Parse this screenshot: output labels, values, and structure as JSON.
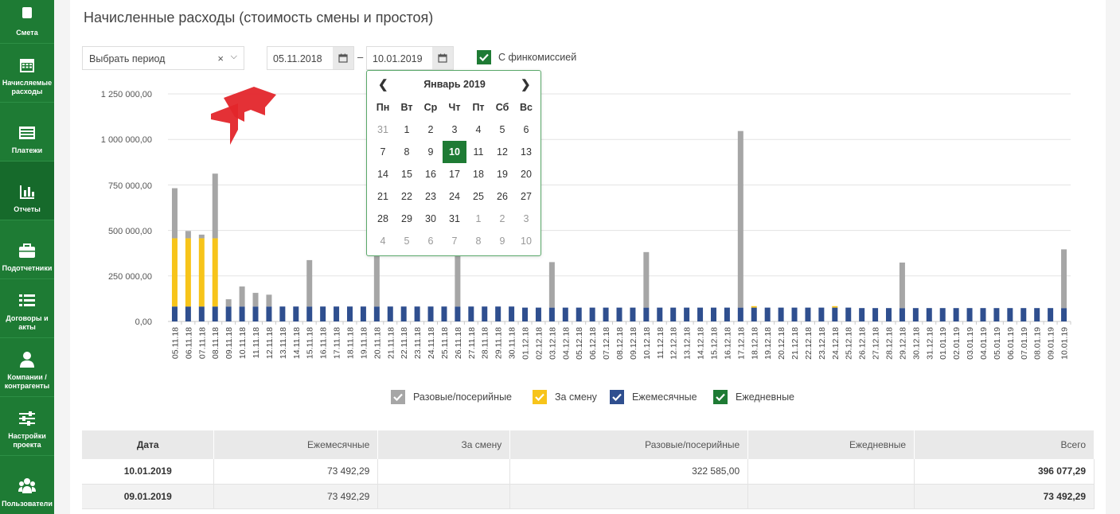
{
  "sidebar": {
    "items": [
      {
        "label": "Смета",
        "icon": "document-icon"
      },
      {
        "label": "Начисляемые расходы",
        "icon": "calendar-icon"
      },
      {
        "label": "Платежи",
        "icon": "list-icon"
      },
      {
        "label": "Отчеты",
        "icon": "bar-chart-icon"
      },
      {
        "label": "Подотчетники",
        "icon": "briefcase-icon"
      },
      {
        "label": "Договоры и акты",
        "icon": "list-lines-icon"
      },
      {
        "label": "Компании / контрагенты",
        "icon": "user-icon"
      },
      {
        "label": "Настройки проекта",
        "icon": "sliders-icon"
      },
      {
        "label": "Пользователи",
        "icon": "users-icon"
      }
    ],
    "active_index": 3
  },
  "header": {
    "title": "Начисленные расходы (стоимость смены и простоя)"
  },
  "filters": {
    "period_placeholder": "Выбрать период",
    "date_from": "05.11.2018",
    "date_separator": "–",
    "date_to": "10.01.2019",
    "fin_commission_label": "С финкомиссией",
    "fin_commission_checked": true
  },
  "calendar": {
    "month_title": "Январь 2019",
    "weekdays": [
      "Пн",
      "Вт",
      "Ср",
      "Чт",
      "Пт",
      "Сб",
      "Вс"
    ],
    "weeks": [
      [
        "31",
        "1",
        "2",
        "3",
        "4",
        "5",
        "6"
      ],
      [
        "7",
        "8",
        "9",
        "10",
        "11",
        "12",
        "13"
      ],
      [
        "14",
        "15",
        "16",
        "17",
        "18",
        "19",
        "20"
      ],
      [
        "21",
        "22",
        "23",
        "24",
        "25",
        "26",
        "27"
      ],
      [
        "28",
        "29",
        "30",
        "31",
        "1",
        "2",
        "3"
      ],
      [
        "4",
        "5",
        "6",
        "7",
        "8",
        "9",
        "10"
      ]
    ],
    "muted": [
      [
        0,
        0
      ],
      [
        4,
        4
      ],
      [
        4,
        5
      ],
      [
        4,
        6
      ],
      [
        5,
        0
      ],
      [
        5,
        1
      ],
      [
        5,
        2
      ],
      [
        5,
        3
      ],
      [
        5,
        4
      ],
      [
        5,
        5
      ],
      [
        5,
        6
      ]
    ],
    "selected": [
      1,
      3
    ]
  },
  "chart_data": {
    "type": "bar",
    "stacked": true,
    "y_ticks": [
      "1 250 000,00",
      "1 000 000,00",
      "750 000,00",
      "500 000,00",
      "250 000,00",
      "0,00"
    ],
    "ylim": [
      0,
      1250000
    ],
    "categories": [
      "05.11.18",
      "06.11.18",
      "07.11.18",
      "08.11.18",
      "09.11.18",
      "10.11.18",
      "11.11.18",
      "12.11.18",
      "13.11.18",
      "14.11.18",
      "15.11.18",
      "16.11.18",
      "17.11.18",
      "18.11.18",
      "19.11.18",
      "20.11.18",
      "21.11.18",
      "22.11.18",
      "23.11.18",
      "24.11.18",
      "25.11.18",
      "26.11.18",
      "27.11.18",
      "28.11.18",
      "29.11.18",
      "30.11.18",
      "01.12.18",
      "02.12.18",
      "03.12.18",
      "04.12.18",
      "05.12.18",
      "06.12.18",
      "07.12.18",
      "08.12.18",
      "09.12.18",
      "10.12.18",
      "11.12.18",
      "12.12.18",
      "13.12.18",
      "14.12.18",
      "15.12.18",
      "16.12.18",
      "17.12.18",
      "18.12.18",
      "19.12.18",
      "20.12.18",
      "21.12.18",
      "22.12.18",
      "23.12.18",
      "24.12.18",
      "25.12.18",
      "26.12.18",
      "27.12.18",
      "28.12.18",
      "29.12.18",
      "30.12.18",
      "31.12.18",
      "01.01.19",
      "02.01.19",
      "03.01.19",
      "04.01.19",
      "05.01.19",
      "06.01.19",
      "07.01.19",
      "08.01.19",
      "09.01.19",
      "10.01.19"
    ],
    "series": [
      {
        "name": "Ежемесячные",
        "color": "#2f4f8f",
        "values": [
          82000,
          82000,
          82000,
          82000,
          82000,
          82000,
          82000,
          82000,
          82000,
          82000,
          82000,
          82000,
          82000,
          82000,
          82000,
          82000,
          82000,
          82000,
          82000,
          82000,
          82000,
          82000,
          82000,
          82000,
          82000,
          82000,
          76000,
          76000,
          76000,
          76000,
          76000,
          76000,
          76000,
          76000,
          76000,
          76000,
          76000,
          76000,
          76000,
          76000,
          76000,
          76000,
          76000,
          76000,
          76000,
          76000,
          76000,
          76000,
          76000,
          76000,
          76000,
          73492,
          73492,
          73492,
          73492,
          73492,
          73492,
          73492,
          73492,
          73492,
          73492,
          73492,
          73492,
          73492,
          73492,
          73492,
          73492
        ]
      },
      {
        "name": "За смену",
        "color": "#f7c41a",
        "values": [
          375000,
          375000,
          375000,
          375000,
          0,
          0,
          0,
          0,
          0,
          0,
          0,
          0,
          0,
          0,
          0,
          0,
          0,
          0,
          0,
          0,
          0,
          0,
          0,
          0,
          0,
          0,
          0,
          0,
          0,
          0,
          0,
          0,
          0,
          0,
          0,
          0,
          0,
          0,
          0,
          0,
          0,
          0,
          0,
          8000,
          0,
          0,
          0,
          0,
          0,
          8000,
          0,
          0,
          0,
          0,
          0,
          0,
          0,
          0,
          0,
          0,
          0,
          0,
          0,
          0,
          0,
          0,
          0
        ]
      },
      {
        "name": "Разовые/посерийные",
        "color": "#a6a6a6",
        "values": [
          275000,
          40000,
          20000,
          355000,
          40000,
          110000,
          75000,
          65000,
          0,
          0,
          255000,
          0,
          0,
          0,
          0,
          310000,
          0,
          0,
          0,
          0,
          0,
          290000,
          0,
          0,
          0,
          0,
          0,
          0,
          250000,
          0,
          0,
          0,
          0,
          0,
          0,
          305000,
          0,
          0,
          0,
          0,
          0,
          0,
          970000,
          0,
          0,
          0,
          0,
          0,
          0,
          0,
          0,
          0,
          0,
          0,
          250000,
          0,
          0,
          0,
          0,
          0,
          0,
          0,
          0,
          0,
          0,
          0,
          322585
        ]
      },
      {
        "name": "Ежедневные",
        "color": "#1e7b34",
        "values": [
          0,
          0,
          0,
          0,
          0,
          0,
          0,
          0,
          0,
          0,
          0,
          0,
          0,
          0,
          0,
          0,
          0,
          0,
          0,
          0,
          0,
          0,
          0,
          0,
          0,
          0,
          0,
          0,
          0,
          0,
          0,
          0,
          0,
          0,
          0,
          0,
          0,
          0,
          0,
          0,
          0,
          0,
          0,
          0,
          0,
          0,
          0,
          0,
          0,
          0,
          0,
          0,
          0,
          0,
          0,
          0,
          0,
          0,
          0,
          0,
          0,
          0,
          0,
          0,
          0,
          0,
          0
        ]
      }
    ]
  },
  "legend": [
    {
      "label": "Разовые/посерийные",
      "color": "#a6a6a6"
    },
    {
      "label": "За смену",
      "color": "#f7c41a"
    },
    {
      "label": "Ежемесячные",
      "color": "#2f4f8f"
    },
    {
      "label": "Ежедневные",
      "color": "#1e7b34"
    }
  ],
  "table": {
    "columns": [
      "Дата",
      "Ежемесячные",
      "За смену",
      "Разовые/посерийные",
      "Ежедневные",
      "Всего"
    ],
    "rows": [
      [
        "10.01.2019",
        "73 492,29",
        "",
        "322 585,00",
        "",
        "396 077,29"
      ],
      [
        "09.01.2019",
        "73 492,29",
        "",
        "",
        "",
        "73 492,29"
      ]
    ]
  }
}
